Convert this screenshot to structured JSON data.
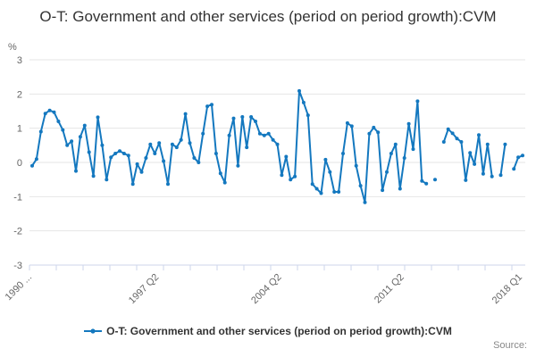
{
  "title": {
    "text": "O-T: Government and other services (period on period growth):CVM"
  },
  "y_axis": {
    "unit_label": "%",
    "ticks": [
      3,
      2,
      1,
      0,
      -1,
      -2,
      -3
    ],
    "min": -3,
    "max": 3
  },
  "x_axis": {
    "tick_labels": [
      {
        "label": "1990 ...",
        "index": 0
      },
      {
        "label": "1997 Q2",
        "index": 29
      },
      {
        "label": "2004 Q2",
        "index": 57
      },
      {
        "label": "2011 Q2",
        "index": 85
      },
      {
        "label": "2018 Q1",
        "index": 112
      }
    ]
  },
  "legend": {
    "label": "O-T: Government and other services (period on period growth):CVM"
  },
  "source": {
    "label": "Source:"
  },
  "colors": {
    "line": "#1478bf",
    "grid": "#e6e6e6",
    "axis": "#ccd6eb",
    "tick_label": "#666666",
    "title_text": "#333333",
    "legend_text": "#333333",
    "source_text": "#888888"
  },
  "chart_data": {
    "type": "line",
    "title": "O-T: Government and other services (period on period growth):CVM",
    "xlabel": "",
    "ylabel": "%",
    "x_start": "1990 Q1",
    "x_end": "2018 Q1",
    "frequency": "quarterly",
    "ylim": [
      -3,
      3
    ],
    "grid": true,
    "legend_position": "bottom",
    "marker": "circle",
    "gaps_render_as_breaks": true,
    "x_tick_label_positions": [
      0,
      29,
      57,
      85,
      112
    ],
    "series": [
      {
        "name": "O-T: Government and other services (period on period growth):CVM",
        "values": [
          -0.1,
          0.1,
          0.9,
          1.43,
          1.52,
          1.47,
          1.2,
          0.95,
          0.5,
          0.62,
          -0.25,
          0.75,
          1.08,
          0.3,
          -0.4,
          1.32,
          0.5,
          -0.5,
          0.15,
          0.26,
          0.33,
          0.26,
          0.2,
          -0.63,
          -0.05,
          -0.28,
          0.13,
          0.53,
          0.26,
          0.57,
          0.04,
          -0.63,
          0.53,
          0.44,
          0.66,
          1.42,
          0.57,
          0.13,
          0.0,
          0.84,
          1.64,
          1.69,
          0.26,
          -0.32,
          -0.59,
          0.79,
          1.29,
          -0.1,
          1.33,
          0.44,
          1.33,
          1.2,
          0.84,
          0.79,
          0.84,
          0.66,
          0.53,
          -0.37,
          0.17,
          -0.5,
          -0.41,
          2.09,
          1.75,
          1.38,
          -0.63,
          -0.77,
          -0.9,
          0.08,
          -0.28,
          -0.86,
          -0.86,
          0.26,
          1.15,
          1.06,
          -0.1,
          -0.68,
          -1.17,
          0.84,
          1.02,
          0.88,
          -0.81,
          -0.28,
          0.26,
          0.53,
          -0.77,
          0.13,
          1.13,
          0.39,
          1.79,
          -0.54,
          -0.62,
          null,
          -0.5,
          null,
          0.6,
          0.97,
          0.85,
          0.7,
          0.6,
          -0.52,
          0.28,
          -0.05,
          0.8,
          -0.33,
          0.53,
          -0.41,
          null,
          -0.37,
          0.53,
          null,
          -0.19,
          0.15,
          0.2
        ]
      }
    ]
  }
}
